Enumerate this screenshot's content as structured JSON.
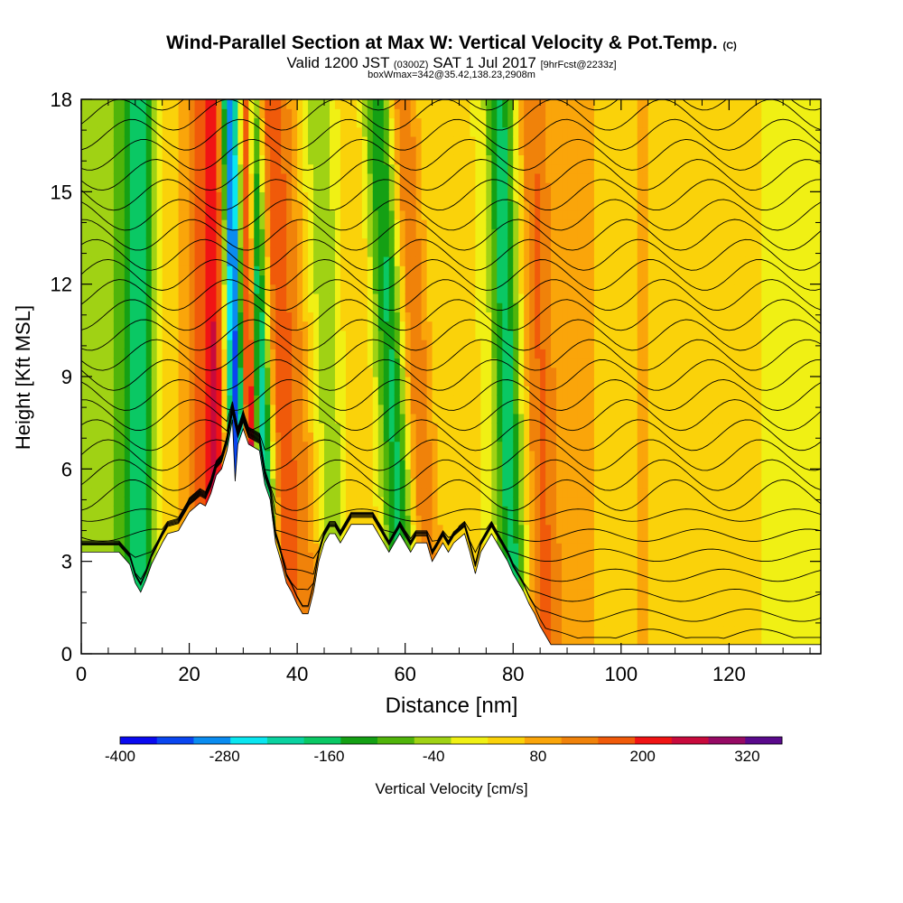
{
  "title": "Wind-Parallel Section at Max W: Vertical Velocity & Pot.Temp.",
  "title_mark": "(C)",
  "subtitle_a": "Valid 1200 JST",
  "subtitle_b": "(0300Z)",
  "subtitle_c": "SAT 1 Jul 2017",
  "subtitle_d": "[9hrFcst@2233z]",
  "box_line": "boxWmax=342@35.42,138.23,2908m",
  "chart_data": {
    "type": "heatmap",
    "xlabel": "Distance [nm]",
    "ylabel": "Height [Kft MSL]",
    "xlim": [
      0,
      137
    ],
    "ylim": [
      0,
      18
    ],
    "x_ticks": [
      "0",
      "20",
      "40",
      "60",
      "80",
      "100",
      "120"
    ],
    "x_tick_values": [
      0,
      20,
      40,
      60,
      80,
      100,
      120
    ],
    "y_ticks": [
      "0",
      "3",
      "6",
      "9",
      "12",
      "15",
      "18"
    ],
    "y_tick_values": [
      0,
      3,
      6,
      9,
      12,
      15,
      18
    ],
    "colorbar": {
      "label": "Vertical Velocity [cm/s]",
      "tick_labels": [
        "-400",
        "-280",
        "-160",
        "-40",
        "80",
        "200",
        "320"
      ],
      "tick_values": [
        -400,
        -280,
        -160,
        -40,
        80,
        200,
        320
      ],
      "range": [
        -400,
        360
      ],
      "colors": [
        "#0a0af0",
        "#0a46f0",
        "#0a8cf0",
        "#0ae6f0",
        "#0ad2a0",
        "#0ac864",
        "#14a014",
        "#50b40a",
        "#a0d214",
        "#f0f014",
        "#fad20a",
        "#faa50a",
        "#f0820a",
        "#f05a0a",
        "#f01414",
        "#c80a3c",
        "#960a64",
        "#5a0a8c"
      ]
    },
    "terrain_kft": [
      [
        0,
        3.3
      ],
      [
        4,
        3.3
      ],
      [
        7,
        3.3
      ],
      [
        9,
        2.9
      ],
      [
        10,
        2.3
      ],
      [
        11,
        2.0
      ],
      [
        12,
        2.4
      ],
      [
        13,
        2.9
      ],
      [
        15,
        3.6
      ],
      [
        16,
        3.9
      ],
      [
        18,
        4.0
      ],
      [
        19,
        4.3
      ],
      [
        20,
        4.6
      ],
      [
        22,
        4.9
      ],
      [
        23,
        4.8
      ],
      [
        24,
        5.2
      ],
      [
        25,
        5.8
      ],
      [
        26,
        6.0
      ],
      [
        27,
        6.6
      ],
      [
        28,
        7.6
      ],
      [
        28.5,
        5.6
      ],
      [
        29,
        6.8
      ],
      [
        30,
        7.3
      ],
      [
        31,
        6.8
      ],
      [
        33,
        6.6
      ],
      [
        34,
        5.5
      ],
      [
        35,
        5.0
      ],
      [
        36,
        3.6
      ],
      [
        37,
        3.0
      ],
      [
        38,
        2.3
      ],
      [
        39,
        2.0
      ],
      [
        40,
        1.6
      ],
      [
        41,
        1.3
      ],
      [
        42,
        1.3
      ],
      [
        43,
        2.0
      ],
      [
        44,
        3.0
      ],
      [
        45,
        3.6
      ],
      [
        46,
        3.9
      ],
      [
        47,
        3.9
      ],
      [
        48,
        3.6
      ],
      [
        49,
        3.9
      ],
      [
        50,
        4.2
      ],
      [
        52,
        4.2
      ],
      [
        54,
        4.2
      ],
      [
        56,
        3.6
      ],
      [
        57,
        3.3
      ],
      [
        58,
        3.6
      ],
      [
        59,
        3.9
      ],
      [
        60,
        3.6
      ],
      [
        61,
        3.3
      ],
      [
        62,
        3.6
      ],
      [
        64,
        3.6
      ],
      [
        65,
        3.0
      ],
      [
        66,
        3.3
      ],
      [
        67,
        3.6
      ],
      [
        68,
        3.3
      ],
      [
        69,
        3.6
      ],
      [
        71,
        3.9
      ],
      [
        72,
        3.3
      ],
      [
        73,
        2.6
      ],
      [
        74,
        3.3
      ],
      [
        75,
        3.6
      ],
      [
        76,
        3.9
      ],
      [
        77,
        3.6
      ],
      [
        78,
        3.3
      ],
      [
        79,
        3.0
      ],
      [
        80,
        2.6
      ],
      [
        81,
        2.3
      ],
      [
        82,
        2.0
      ],
      [
        83,
        1.6
      ],
      [
        84,
        1.3
      ],
      [
        85,
        0.9
      ],
      [
        86,
        0.6
      ],
      [
        87,
        0.3
      ],
      [
        137,
        0.3
      ]
    ],
    "vertical_velocity_bands": [
      {
        "x0": 5,
        "x1": 5,
        "slope_nm_per_kft": 0.0,
        "w": 8,
        "peak_cms": -80
      },
      {
        "x0": 11,
        "x1": 11,
        "slope_nm_per_kft": 0.0,
        "w": 3,
        "peak_cms": -160
      },
      {
        "x0": 15,
        "x1": 15,
        "slope_nm_per_kft": 0.0,
        "w": 4,
        "peak_cms": 40
      },
      {
        "x0": 22,
        "x1": 22,
        "slope_nm_per_kft": 0.0,
        "w": 3,
        "peak_cms": 120
      },
      {
        "x0": 25,
        "x1": 25,
        "slope_nm_per_kft": 0.0,
        "w": 2,
        "peak_cms": 160
      },
      {
        "x0": 28.5,
        "x1": 28.5,
        "slope_nm_per_kft": -0.12,
        "w": 1.6,
        "peak_cms": -360
      },
      {
        "x0": 31.2,
        "x1": 31.2,
        "slope_nm_per_kft": -0.06,
        "w": 1.2,
        "peak_cms": 340
      },
      {
        "x0": 33.5,
        "x1": 33.5,
        "slope_nm_per_kft": -0.2,
        "w": 2.2,
        "peak_cms": -300
      },
      {
        "x0": 36,
        "x1": 36,
        "slope_nm_per_kft": -0.25,
        "w": 2.5,
        "peak_cms": 160
      },
      {
        "x0": 40,
        "x1": 40,
        "slope_nm_per_kft": -0.3,
        "w": 3,
        "peak_cms": 100
      },
      {
        "x0": 46,
        "x1": 46,
        "slope_nm_per_kft": -0.2,
        "w": 3,
        "peak_cms": -80
      },
      {
        "x0": 51,
        "x1": 51,
        "slope_nm_per_kft": 0.0,
        "w": 4,
        "peak_cms": 40
      },
      {
        "x0": 58,
        "x1": 58,
        "slope_nm_per_kft": -0.3,
        "w": 3,
        "peak_cms": -200
      },
      {
        "x0": 62,
        "x1": 62,
        "slope_nm_per_kft": -0.3,
        "w": 3,
        "peak_cms": 140
      },
      {
        "x0": 79,
        "x1": 79,
        "slope_nm_per_kft": -0.15,
        "w": 2.5,
        "peak_cms": -200
      },
      {
        "x0": 85,
        "x1": 85,
        "slope_nm_per_kft": -0.12,
        "w": 3,
        "peak_cms": 120
      },
      {
        "x0": 92,
        "x1": 92,
        "slope_nm_per_kft": 0.0,
        "w": 5,
        "peak_cms": 60
      },
      {
        "x0": 104,
        "x1": 104,
        "slope_nm_per_kft": 0.0,
        "w": 5,
        "peak_cms": 40
      },
      {
        "x0": 114,
        "x1": 114,
        "slope_nm_per_kft": 0.0,
        "w": 6,
        "peak_cms": 20
      },
      {
        "x0": 132,
        "x1": 132,
        "slope_nm_per_kft": 0.0,
        "w": 4,
        "peak_cms": -40
      }
    ],
    "isentrope_label": "Pot.Temp."
  }
}
